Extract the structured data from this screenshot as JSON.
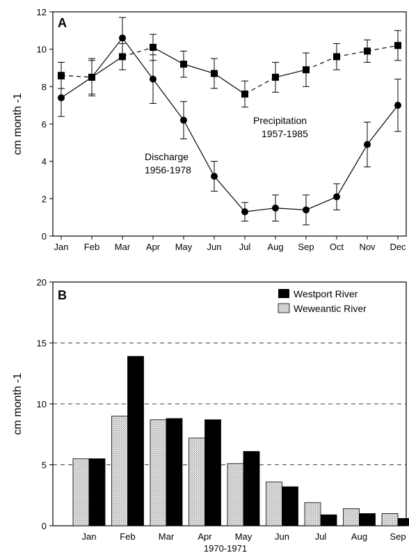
{
  "chart_data": [
    {
      "type": "line",
      "panel_label": "A",
      "ylabel": "cm month -1",
      "ylim": [
        0,
        12
      ],
      "yticks": [
        0,
        2,
        4,
        6,
        8,
        10,
        12
      ],
      "categories": [
        "Jan",
        "Feb",
        "Mar",
        "Apr",
        "May",
        "Jun",
        "Jul",
        "Aug",
        "Sep",
        "Oct",
        "Nov",
        "Dec"
      ],
      "grid": false,
      "series": [
        {
          "name": "Precipitation 1957-1985",
          "label_lines": [
            "Precipitation",
            "1957-1985"
          ],
          "marker": "square",
          "values": [
            8.6,
            8.5,
            9.6,
            10.1,
            9.2,
            8.7,
            7.6,
            8.5,
            8.9,
            9.6,
            9.9,
            10.2
          ],
          "err": [
            0.7,
            0.9,
            0.7,
            0.7,
            0.7,
            0.8,
            0.7,
            0.8,
            0.9,
            0.7,
            0.6,
            0.8
          ],
          "dashed_segments": [
            0,
            2,
            6,
            8,
            9,
            10
          ]
        },
        {
          "name": "Discharge 1956-1978",
          "label_lines": [
            "Discharge",
            "1956-1978"
          ],
          "marker": "circle",
          "values": [
            7.4,
            8.5,
            10.6,
            8.4,
            6.2,
            3.2,
            1.3,
            1.5,
            1.4,
            2.1,
            4.9,
            7.0
          ],
          "err": [
            1.0,
            1.0,
            1.1,
            1.3,
            1.0,
            0.8,
            0.5,
            0.7,
            0.8,
            0.7,
            1.2,
            1.4
          ]
        }
      ]
    },
    {
      "type": "bar",
      "panel_label": "B",
      "ylabel": "cm month -1",
      "xlabel": "1970-1971",
      "ylim": [
        0,
        20
      ],
      "yticks": [
        0,
        5,
        10,
        15,
        20
      ],
      "grid": "dashed horizontal at 5, 10, 15",
      "legend": "top-right",
      "categories": [
        "Jan",
        "Feb",
        "Mar",
        "Apr",
        "May",
        "Jun",
        "Jul",
        "Aug",
        "Sep"
      ],
      "series": [
        {
          "name": "Westport River",
          "color": "#000000",
          "values": [
            5.5,
            13.9,
            8.8,
            8.7,
            6.1,
            3.2,
            0.9,
            1.0,
            0.6
          ]
        },
        {
          "name": "Weweantic River",
          "color": "#d4d4d4",
          "values": [
            5.5,
            9.0,
            8.7,
            7.2,
            5.1,
            3.6,
            1.9,
            1.4,
            1.0
          ]
        }
      ]
    }
  ]
}
